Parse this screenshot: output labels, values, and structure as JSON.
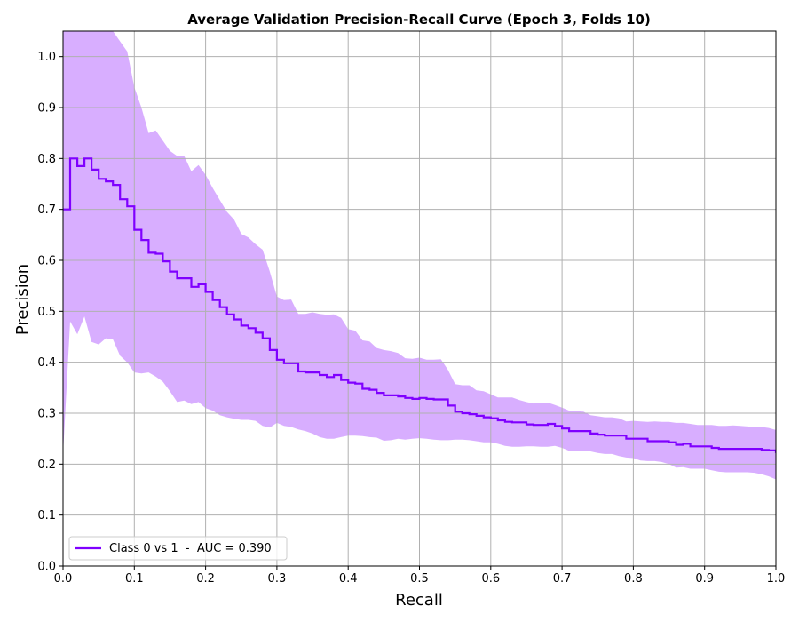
{
  "chart_data": {
    "type": "line",
    "title": "Average Validation Precision-Recall Curve (Epoch 3, Folds 10)",
    "xlabel": "Recall",
    "ylabel": "Precision",
    "xlim": [
      0.0,
      1.0
    ],
    "ylim": [
      0.0,
      1.05
    ],
    "x_ticks": [
      "0.0",
      "0.1",
      "0.2",
      "0.3",
      "0.4",
      "0.5",
      "0.6",
      "0.7",
      "0.8",
      "0.9",
      "1.0"
    ],
    "y_ticks": [
      "0.0",
      "0.1",
      "0.2",
      "0.3",
      "0.4",
      "0.5",
      "0.6",
      "0.7",
      "0.8",
      "0.9",
      "1.0"
    ],
    "grid": true,
    "legend_position": "lower-left",
    "colors": {
      "line": "#7f00ff",
      "band": "#d6aaff",
      "grid": "#b0b0b0"
    },
    "series": [
      {
        "name": "Class 0 vs 1  -  AUC = 0.390",
        "type": "step",
        "x": [
          0.0,
          0.01,
          0.02,
          0.03,
          0.04,
          0.05,
          0.06,
          0.07,
          0.08,
          0.09,
          0.1,
          0.11,
          0.12,
          0.13,
          0.14,
          0.15,
          0.16,
          0.17,
          0.18,
          0.19,
          0.2,
          0.21,
          0.22,
          0.23,
          0.24,
          0.25,
          0.26,
          0.27,
          0.28,
          0.29,
          0.3,
          0.31,
          0.32,
          0.33,
          0.34,
          0.35,
          0.36,
          0.37,
          0.38,
          0.39,
          0.4,
          0.41,
          0.42,
          0.43,
          0.44,
          0.45,
          0.46,
          0.47,
          0.48,
          0.49,
          0.5,
          0.51,
          0.52,
          0.53,
          0.54,
          0.55,
          0.56,
          0.57,
          0.58,
          0.59,
          0.6,
          0.61,
          0.62,
          0.63,
          0.64,
          0.65,
          0.66,
          0.67,
          0.68,
          0.69,
          0.7,
          0.71,
          0.72,
          0.73,
          0.74,
          0.75,
          0.76,
          0.77,
          0.78,
          0.79,
          0.8,
          0.81,
          0.82,
          0.83,
          0.84,
          0.85,
          0.86,
          0.87,
          0.88,
          0.89,
          0.9,
          0.91,
          0.92,
          0.93,
          0.94,
          0.95,
          0.96,
          0.97,
          0.98,
          0.99,
          1.0
        ],
        "y": [
          0.7,
          0.8,
          0.785,
          0.8,
          0.778,
          0.76,
          0.755,
          0.748,
          0.72,
          0.706,
          0.66,
          0.64,
          0.615,
          0.613,
          0.598,
          0.578,
          0.565,
          0.565,
          0.548,
          0.553,
          0.538,
          0.522,
          0.508,
          0.494,
          0.484,
          0.472,
          0.467,
          0.458,
          0.447,
          0.424,
          0.405,
          0.398,
          0.398,
          0.382,
          0.38,
          0.38,
          0.375,
          0.371,
          0.375,
          0.365,
          0.36,
          0.358,
          0.348,
          0.346,
          0.34,
          0.335,
          0.335,
          0.333,
          0.33,
          0.328,
          0.33,
          0.328,
          0.327,
          0.327,
          0.315,
          0.303,
          0.3,
          0.298,
          0.295,
          0.292,
          0.29,
          0.286,
          0.283,
          0.282,
          0.282,
          0.278,
          0.277,
          0.277,
          0.279,
          0.275,
          0.27,
          0.265,
          0.265,
          0.265,
          0.26,
          0.258,
          0.256,
          0.256,
          0.256,
          0.25,
          0.25,
          0.25,
          0.245,
          0.245,
          0.245,
          0.243,
          0.238,
          0.24,
          0.235,
          0.235,
          0.235,
          0.232,
          0.23,
          0.23,
          0.23,
          0.23,
          0.23,
          0.23,
          0.228,
          0.227,
          0.222
        ],
        "band_lower": [
          0.22,
          0.48,
          0.455,
          0.49,
          0.44,
          0.435,
          0.447,
          0.445,
          0.413,
          0.4,
          0.38,
          0.378,
          0.38,
          0.372,
          0.362,
          0.343,
          0.322,
          0.325,
          0.318,
          0.322,
          0.31,
          0.305,
          0.296,
          0.292,
          0.289,
          0.287,
          0.287,
          0.285,
          0.275,
          0.272,
          0.281,
          0.275,
          0.273,
          0.268,
          0.265,
          0.26,
          0.253,
          0.25,
          0.25,
          0.253,
          0.256,
          0.256,
          0.255,
          0.253,
          0.252,
          0.246,
          0.247,
          0.25,
          0.248,
          0.25,
          0.251,
          0.25,
          0.248,
          0.247,
          0.247,
          0.248,
          0.248,
          0.247,
          0.245,
          0.243,
          0.243,
          0.24,
          0.236,
          0.234,
          0.234,
          0.235,
          0.235,
          0.234,
          0.234,
          0.236,
          0.232,
          0.226,
          0.225,
          0.225,
          0.225,
          0.222,
          0.22,
          0.22,
          0.216,
          0.213,
          0.212,
          0.207,
          0.206,
          0.206,
          0.204,
          0.2,
          0.193,
          0.194,
          0.191,
          0.191,
          0.191,
          0.188,
          0.185,
          0.184,
          0.184,
          0.184,
          0.184,
          0.183,
          0.18,
          0.176,
          0.17
        ],
        "band_upper": [
          1.05,
          1.05,
          1.05,
          1.05,
          1.05,
          1.05,
          1.05,
          1.05,
          1.03,
          1.01,
          0.94,
          0.9,
          0.85,
          0.855,
          0.835,
          0.815,
          0.805,
          0.805,
          0.775,
          0.787,
          0.768,
          0.742,
          0.718,
          0.695,
          0.68,
          0.652,
          0.645,
          0.632,
          0.621,
          0.578,
          0.529,
          0.522,
          0.523,
          0.495,
          0.495,
          0.498,
          0.495,
          0.493,
          0.494,
          0.487,
          0.465,
          0.462,
          0.443,
          0.441,
          0.428,
          0.424,
          0.422,
          0.418,
          0.408,
          0.407,
          0.409,
          0.405,
          0.405,
          0.406,
          0.385,
          0.357,
          0.355,
          0.355,
          0.345,
          0.343,
          0.337,
          0.331,
          0.331,
          0.331,
          0.326,
          0.322,
          0.319,
          0.32,
          0.321,
          0.316,
          0.311,
          0.305,
          0.304,
          0.303,
          0.296,
          0.294,
          0.292,
          0.292,
          0.29,
          0.284,
          0.285,
          0.284,
          0.283,
          0.284,
          0.283,
          0.283,
          0.281,
          0.281,
          0.279,
          0.277,
          0.277,
          0.277,
          0.275,
          0.275,
          0.276,
          0.275,
          0.274,
          0.273,
          0.273,
          0.271,
          0.267
        ]
      }
    ]
  }
}
